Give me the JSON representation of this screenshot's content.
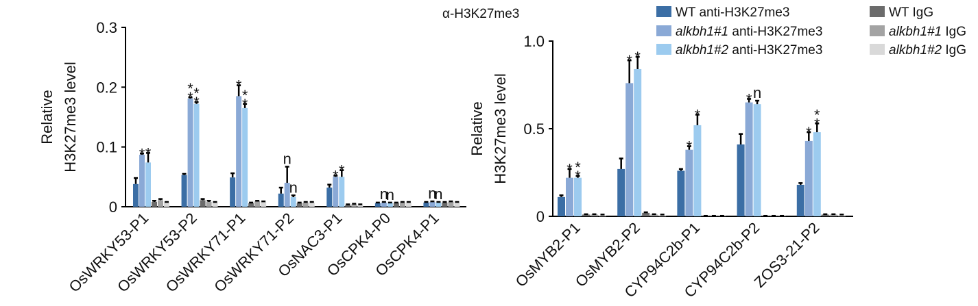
{
  "supertitle": "α-H3K27me3",
  "colors": {
    "WT anti-H3K27me3": "#3b6ea5",
    "alkbh1#1 anti-H3K27me3": "#8aa9d6",
    "alkbh1#2 anti-H3K27me3": "#9ccbef",
    "WT IgG": "#6b6b6b",
    "alkbh1#1 IgG": "#a3a3a3",
    "alkbh1#2 IgG": "#d9d9d9"
  },
  "legend": {
    "items": [
      {
        "name": "WT anti-H3K27me3",
        "parts": [
          {
            "t": "WT anti-H3K27me3",
            "i": false
          }
        ]
      },
      {
        "name": "alkbh1#1 anti-H3K27me3",
        "parts": [
          {
            "t": "alkbh1#1",
            "i": true
          },
          {
            "t": " anti-H3K27me3",
            "i": false
          }
        ]
      },
      {
        "name": "alkbh1#2 anti-H3K27me3",
        "parts": [
          {
            "t": "alkbh1#2",
            "i": true
          },
          {
            "t": " anti-H3K27me3",
            "i": false
          }
        ]
      },
      {
        "name": "WT IgG",
        "parts": [
          {
            "t": "WT IgG",
            "i": false
          }
        ]
      },
      {
        "name": "alkbh1#1 IgG",
        "parts": [
          {
            "t": "alkbh1#1",
            "i": true
          },
          {
            "t": " IgG",
            "i": false
          }
        ]
      },
      {
        "name": "alkbh1#2 IgG",
        "parts": [
          {
            "t": "alkbh1#2",
            "i": true
          },
          {
            "t": " IgG",
            "i": false
          }
        ]
      }
    ]
  },
  "chart_data": [
    {
      "type": "bar",
      "ylabel_lines": [
        "Relative",
        "H3K27me3 level"
      ],
      "ylim": [
        0,
        0.3
      ],
      "yticks": [
        0,
        0.1,
        0.2,
        0.3
      ],
      "ytick_labels": [
        "0",
        "0.1",
        "0.2",
        "0.3"
      ],
      "categories": [
        "OsWRKY53-P1",
        "OsWRKY53-P2",
        "OsWRKY71-P1",
        "OsWRKY71-P2",
        "OsNAC3-P1",
        "OsCPK4-P0",
        "OsCPK4-P1"
      ],
      "series": [
        {
          "name": "WT anti-H3K27me3",
          "values": [
            0.038,
            0.053,
            0.049,
            0.022,
            0.032,
            0.006,
            0.007
          ],
          "errors": [
            0.01,
            0.002,
            0.007,
            0.01,
            0.005,
            0.001,
            0.001
          ]
        },
        {
          "name": "alkbh1#1 anti-H3K27me3",
          "values": [
            0.087,
            0.181,
            0.185,
            0.04,
            0.05,
            0.007,
            0.008
          ],
          "errors": [
            0.002,
            0.002,
            0.018,
            0.027,
            0.002,
            0.001,
            0.001
          ]
        },
        {
          "name": "alkbh1#2 anti-H3K27me3",
          "values": [
            0.074,
            0.172,
            0.165,
            0.016,
            0.05,
            0.006,
            0.007
          ],
          "errors": [
            0.016,
            0.003,
            0.007,
            0.003,
            0.011,
            0.001,
            0.001
          ]
        },
        {
          "name": "WT IgG",
          "values": [
            0.008,
            0.011,
            0.006,
            0.006,
            0.003,
            0.006,
            0.007
          ],
          "errors": [
            0.002,
            0.002,
            0.001,
            0.001,
            0.001,
            0.001,
            0.001
          ]
        },
        {
          "name": "alkbh1#1 IgG",
          "values": [
            0.011,
            0.008,
            0.009,
            0.007,
            0.004,
            0.007,
            0.008
          ],
          "errors": [
            0.002,
            0.002,
            0.001,
            0.001,
            0.001,
            0.001,
            0.001
          ]
        },
        {
          "name": "alkbh1#2 IgG",
          "values": [
            0.007,
            0.007,
            0.008,
            0.007,
            0.003,
            0.007,
            0.007
          ],
          "errors": [
            0.001,
            0.001,
            0.001,
            0.001,
            0.001,
            0.001,
            0.001
          ]
        }
      ],
      "annotations": [
        {
          "category": "OsWRKY53-P1",
          "series": 1,
          "text": "*"
        },
        {
          "category": "OsWRKY53-P1",
          "series": 2,
          "text": "*"
        },
        {
          "category": "OsWRKY53-P2",
          "series": 1,
          "text": "**"
        },
        {
          "category": "OsWRKY53-P2",
          "series": 2,
          "text": "**"
        },
        {
          "category": "OsWRKY71-P1",
          "series": 1,
          "text": "*"
        },
        {
          "category": "OsWRKY71-P1",
          "series": 2,
          "text": "**"
        },
        {
          "category": "OsWRKY71-P2",
          "series": 1,
          "text": "n"
        },
        {
          "category": "OsWRKY71-P2",
          "series": 2,
          "text": "n"
        },
        {
          "category": "OsNAC3-P1",
          "series": 1,
          "text": "*"
        },
        {
          "category": "OsNAC3-P1",
          "series": 2,
          "text": "*"
        },
        {
          "category": "OsCPK4-P0",
          "series": 1,
          "text": "n"
        },
        {
          "category": "OsCPK4-P0",
          "series": 2,
          "text": "n"
        },
        {
          "category": "OsCPK4-P1",
          "series": 1,
          "text": "n"
        },
        {
          "category": "OsCPK4-P1",
          "series": 2,
          "text": "n"
        }
      ]
    },
    {
      "type": "bar",
      "ylabel_lines": [
        "Relative",
        "H3K27me3 level"
      ],
      "ylim": [
        0,
        1.0
      ],
      "yticks": [
        0,
        0.5,
        1.0
      ],
      "ytick_labels": [
        "0",
        "0.5",
        "1.0"
      ],
      "categories": [
        "OsMYB2-P1",
        "OsMYB2-P2",
        "CYP94C2b-P1",
        "CYP94C2b-P2",
        "ZOS3-21-P2"
      ],
      "series": [
        {
          "name": "WT anti-H3K27me3",
          "values": [
            0.11,
            0.27,
            0.26,
            0.41,
            0.18
          ],
          "errors": [
            0.01,
            0.06,
            0.01,
            0.06,
            0.01
          ]
        },
        {
          "name": "alkbh1#1 anti-H3K27me3",
          "values": [
            0.22,
            0.76,
            0.38,
            0.65,
            0.43
          ],
          "errors": [
            0.05,
            0.13,
            0.02,
            0.02,
            0.05
          ]
        },
        {
          "name": "alkbh1#2 anti-H3K27me3",
          "values": [
            0.22,
            0.84,
            0.52,
            0.64,
            0.48
          ],
          "errors": [
            0.01,
            0.07,
            0.06,
            0.02,
            0.05
          ]
        },
        {
          "name": "WT IgG",
          "values": [
            0.01,
            0.02,
            0.002,
            0.002,
            0.01
          ],
          "errors": [
            0.002,
            0.003,
            0.001,
            0.001,
            0.002
          ]
        },
        {
          "name": "alkbh1#1 IgG",
          "values": [
            0.01,
            0.01,
            0.002,
            0.002,
            0.01
          ],
          "errors": [
            0.002,
            0.002,
            0.001,
            0.001,
            0.002
          ]
        },
        {
          "name": "alkbh1#2 IgG",
          "values": [
            0.008,
            0.008,
            0.002,
            0.002,
            0.008
          ],
          "errors": [
            0.002,
            0.002,
            0.001,
            0.001,
            0.002
          ]
        }
      ],
      "annotations": [
        {
          "category": "OsMYB2-P1",
          "series": 1,
          "text": "*"
        },
        {
          "category": "OsMYB2-P1",
          "series": 2,
          "text": "**"
        },
        {
          "category": "OsMYB2-P2",
          "series": 1,
          "text": "*"
        },
        {
          "category": "OsMYB2-P2",
          "series": 2,
          "text": "*"
        },
        {
          "category": "CYP94C2b-P1",
          "series": 1,
          "text": "*"
        },
        {
          "category": "CYP94C2b-P1",
          "series": 2,
          "text": "*"
        },
        {
          "category": "CYP94C2b-P2",
          "series": 1,
          "text": "*"
        },
        {
          "category": "CYP94C2b-P2",
          "series": 2,
          "text": "n"
        },
        {
          "category": "ZOS3-21-P2",
          "series": 1,
          "text": "*"
        },
        {
          "category": "ZOS3-21-P2",
          "series": 2,
          "text": "**"
        }
      ]
    }
  ]
}
